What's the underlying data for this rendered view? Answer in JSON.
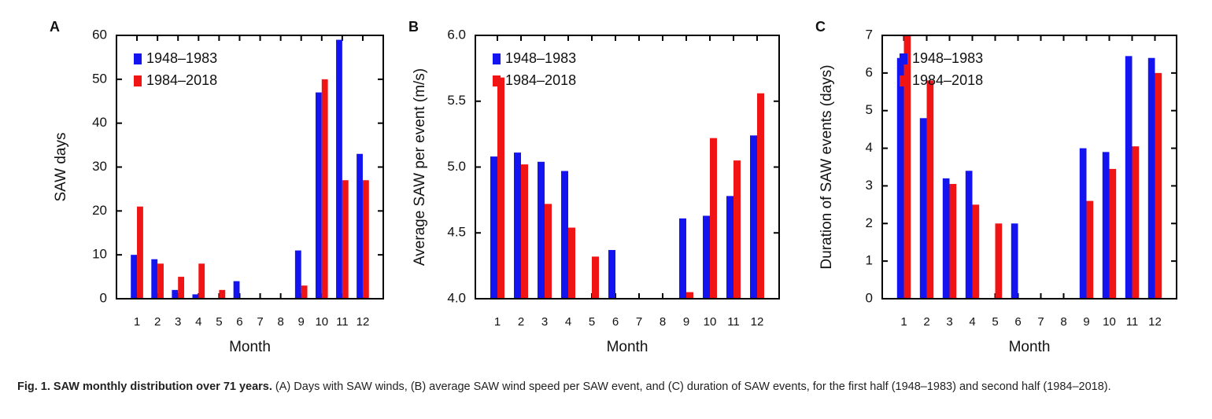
{
  "chart_data": [
    {
      "type": "bar",
      "panel": "A",
      "ylabel": "SAW days",
      "xlabel": "Month",
      "categories": [
        "1",
        "2",
        "3",
        "4",
        "5",
        "6",
        "7",
        "8",
        "9",
        "10",
        "11",
        "12"
      ],
      "series": [
        {
          "name": "1948–1983",
          "color": "#1414f0",
          "values": [
            10,
            9,
            2,
            1,
            0,
            4,
            0,
            0,
            11,
            47,
            59,
            33
          ]
        },
        {
          "name": "1984–2018",
          "color": "#f01414",
          "values": [
            21,
            8,
            5,
            8,
            2,
            0,
            0,
            0,
            3,
            50,
            27,
            27
          ]
        }
      ],
      "ylim": [
        0,
        60
      ],
      "yticks": [
        0,
        10,
        20,
        30,
        40,
        50,
        60
      ]
    },
    {
      "type": "bar",
      "panel": "B",
      "ylabel": "Average SAW per event  (m/s)",
      "xlabel": "Month",
      "categories": [
        "1",
        "2",
        "3",
        "4",
        "5",
        "6",
        "7",
        "8",
        "9",
        "10",
        "11",
        "12"
      ],
      "series": [
        {
          "name": "1948–1983",
          "color": "#1414f0",
          "values": [
            5.08,
            5.11,
            5.04,
            4.97,
            null,
            4.37,
            null,
            null,
            4.61,
            4.63,
            4.78,
            5.24
          ]
        },
        {
          "name": "1984–2018",
          "color": "#f01414",
          "values": [
            5.68,
            5.02,
            4.72,
            4.54,
            4.32,
            null,
            null,
            null,
            4.05,
            5.22,
            5.05,
            5.56
          ]
        }
      ],
      "ylim": [
        4,
        6
      ],
      "yticks": [
        {
          "value": 4,
          "label": "4.0"
        },
        4.5,
        {
          "value": 5,
          "label": "5.0"
        },
        5.5,
        {
          "value": 6,
          "label": "6.0"
        }
      ]
    },
    {
      "type": "bar",
      "panel": "C",
      "ylabel": "Duration of SAW events  (days)",
      "xlabel": "Month",
      "categories": [
        "1",
        "2",
        "3",
        "4",
        "5",
        "6",
        "7",
        "8",
        "9",
        "10",
        "11",
        "12"
      ],
      "series": [
        {
          "name": "1948–1983",
          "color": "#1414f0",
          "values": [
            6.4,
            4.8,
            3.2,
            3.4,
            0,
            2.0,
            0,
            0,
            4.0,
            3.9,
            6.45,
            6.4
          ]
        },
        {
          "name": "1984–2018",
          "color": "#f01414",
          "values": [
            7.0,
            5.8,
            3.05,
            2.5,
            2.0,
            0,
            0,
            0,
            2.6,
            3.45,
            4.05,
            6.0
          ]
        }
      ],
      "ylim": [
        0,
        7
      ],
      "yticks": [
        0,
        1,
        2,
        3,
        4,
        5,
        6,
        7
      ]
    }
  ],
  "caption": {
    "label": "Fig. 1. SAW monthly distribution over 71 years.",
    "text": " (A) Days with SAW winds, (B) average SAW wind speed per SAW event, and (C) duration of SAW events, for the first half (1948–1983) and second half (1984–2018)."
  }
}
